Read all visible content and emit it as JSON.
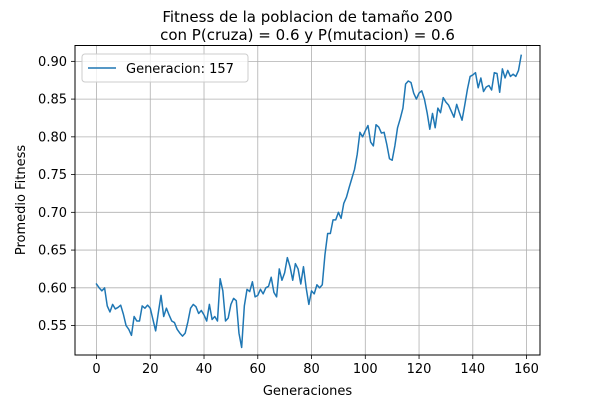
{
  "chart_data": {
    "type": "line",
    "title_line1": "Fitness de la poblacion de tamaño 200",
    "title_line2": "con P(cruza) = 0.6 y P(mutacion) = 0.6",
    "xlabel": "Generaciones",
    "ylabel": "Promedio Fitness",
    "xlim": [
      -8,
      165
    ],
    "ylim": [
      0.511,
      0.921
    ],
    "xticks": [
      0,
      20,
      40,
      60,
      80,
      100,
      120,
      140,
      160
    ],
    "xtick_labels": [
      "0",
      "20",
      "40",
      "60",
      "80",
      "100",
      "120",
      "140",
      "160"
    ],
    "yticks": [
      0.55,
      0.6,
      0.65,
      0.7,
      0.75,
      0.8,
      0.85,
      0.9
    ],
    "ytick_labels": [
      "0.55",
      "0.60",
      "0.65",
      "0.70",
      "0.75",
      "0.80",
      "0.85",
      "0.90"
    ],
    "grid": true,
    "legend_position": "top-left",
    "series": [
      {
        "name": "Generacion: 157",
        "color": "#1f77b4",
        "values": [
          0.605,
          0.6,
          0.596,
          0.6,
          0.576,
          0.568,
          0.578,
          0.572,
          0.574,
          0.577,
          0.565,
          0.55,
          0.545,
          0.537,
          0.562,
          0.556,
          0.556,
          0.576,
          0.573,
          0.577,
          0.573,
          0.558,
          0.543,
          0.567,
          0.59,
          0.562,
          0.573,
          0.564,
          0.556,
          0.554,
          0.545,
          0.54,
          0.536,
          0.54,
          0.555,
          0.573,
          0.578,
          0.575,
          0.566,
          0.57,
          0.564,
          0.556,
          0.578,
          0.558,
          0.562,
          0.556,
          0.612,
          0.596,
          0.556,
          0.56,
          0.578,
          0.586,
          0.583,
          0.54,
          0.521,
          0.576,
          0.598,
          0.595,
          0.608,
          0.588,
          0.59,
          0.598,
          0.592,
          0.6,
          0.602,
          0.614,
          0.594,
          0.588,
          0.625,
          0.61,
          0.62,
          0.64,
          0.628,
          0.61,
          0.632,
          0.625,
          0.605,
          0.628,
          0.6,
          0.578,
          0.596,
          0.592,
          0.604,
          0.6,
          0.604,
          0.644,
          0.672,
          0.672,
          0.69,
          0.69,
          0.7,
          0.692,
          0.712,
          0.72,
          0.733,
          0.745,
          0.757,
          0.777,
          0.806,
          0.8,
          0.808,
          0.815,
          0.793,
          0.788,
          0.816,
          0.813,
          0.805,
          0.806,
          0.79,
          0.771,
          0.769,
          0.788,
          0.812,
          0.824,
          0.838,
          0.87,
          0.874,
          0.872,
          0.858,
          0.85,
          0.858,
          0.861,
          0.85,
          0.832,
          0.81,
          0.831,
          0.812,
          0.838,
          0.832,
          0.852,
          0.846,
          0.842,
          0.834,
          0.826,
          0.843,
          0.832,
          0.822,
          0.842,
          0.863,
          0.88,
          0.882,
          0.885,
          0.865,
          0.878,
          0.86,
          0.866,
          0.868,
          0.862,
          0.885,
          0.884,
          0.859,
          0.89,
          0.878,
          0.888,
          0.88,
          0.883,
          0.88,
          0.888,
          0.908
        ]
      }
    ]
  }
}
